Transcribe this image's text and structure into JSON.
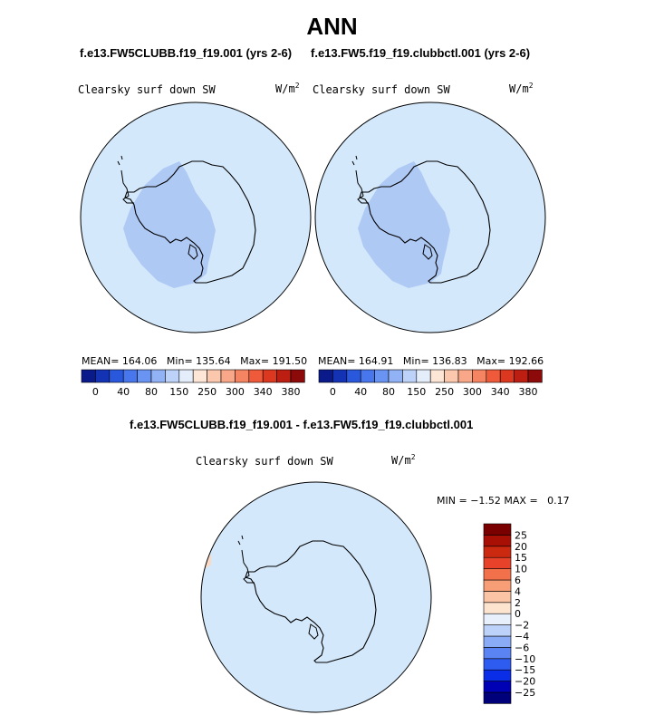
{
  "page": {
    "title": "ANN",
    "panels_subtitle_left": "f.e13.FW5CLUBB.f19_f19.001 (yrs 2-6)",
    "panels_subtitle_right": "f.e13.FW5.f19_f19.clubbctl.001 (yrs 2-6)",
    "diff_subtitle": "f.e13.FW5CLUBB.f19_f19.001 - f.e13.FW5.f19_f19.clubbctl.001"
  },
  "colors": {
    "ocean": "#d4e8fb",
    "interior": "#afc9f5",
    "land_outline": "#000000",
    "anomaly_patch": "#fbd9c4"
  },
  "chart_data": [
    {
      "type": "map",
      "projection": "south-polar stereographic",
      "subtitle": "f.e13.FW5CLUBB.f19_f19.001 (yrs 2-6)",
      "variable": "Clearsky surf down SW",
      "unit_base": "W/m",
      "unit_exp": "2",
      "mean_label": "MEAN=",
      "mean": "164.06",
      "min_label": "Min=",
      "min": "135.64",
      "max_label": "Max=",
      "max": "191.50",
      "colorbar": {
        "colors": [
          "#0a1a8a",
          "#1432b4",
          "#2a58dc",
          "#4876ec",
          "#6a94f2",
          "#92b2f6",
          "#bcd2f9",
          "#e4eefb",
          "#fde6d6",
          "#fbc8ae",
          "#f8a888",
          "#f48462",
          "#ee5a3a",
          "#dc3820",
          "#bc1e12",
          "#8c0a0a"
        ],
        "labels": [
          "0",
          "40",
          "80",
          "150",
          "250",
          "300",
          "340",
          "380"
        ]
      }
    },
    {
      "type": "map",
      "projection": "south-polar stereographic",
      "subtitle": "f.e13.FW5.f19_f19.clubbctl.001 (yrs 2-6)",
      "variable": "Clearsky surf down SW",
      "unit_base": "W/m",
      "unit_exp": "2",
      "mean_label": "MEAN=",
      "mean": "164.91",
      "min_label": "Min=",
      "min": "136.83",
      "max_label": "Max=",
      "max": "192.66",
      "colorbar": {
        "colors": [
          "#0a1a8a",
          "#1432b4",
          "#2a58dc",
          "#4876ec",
          "#6a94f2",
          "#92b2f6",
          "#bcd2f9",
          "#e4eefb",
          "#fde6d6",
          "#fbc8ae",
          "#f8a888",
          "#f48462",
          "#ee5a3a",
          "#dc3820",
          "#bc1e12",
          "#8c0a0a"
        ],
        "labels": [
          "0",
          "40",
          "80",
          "150",
          "250",
          "300",
          "340",
          "380"
        ]
      }
    },
    {
      "type": "map",
      "projection": "south-polar stereographic",
      "subtitle": "f.e13.FW5CLUBB.f19_f19.001 - f.e13.FW5.f19_f19.clubbctl.001",
      "variable": "Clearsky surf down SW",
      "unit_base": "W/m",
      "unit_exp": "2",
      "min_label": "MIN =",
      "min": "−1.52",
      "max_label": "MAX =",
      "max": "0.17",
      "colorbar": {
        "orientation": "vertical",
        "colors": [
          "#00007a",
          "#0000b4",
          "#0a2ee8",
          "#2e5cf0",
          "#5a84f4",
          "#8aacf6",
          "#bcd2f9",
          "#e8f1fb",
          "#fde4cf",
          "#fbc4a4",
          "#f89e76",
          "#f2704a",
          "#e8422a",
          "#cc2a10",
          "#a81006",
          "#7a0000"
        ],
        "labels": [
          "−25",
          "−20",
          "−15",
          "−10",
          "−6",
          "−4",
          "−2",
          "0",
          "2",
          "4",
          "6",
          "10",
          "15",
          "20",
          "25"
        ]
      }
    }
  ]
}
